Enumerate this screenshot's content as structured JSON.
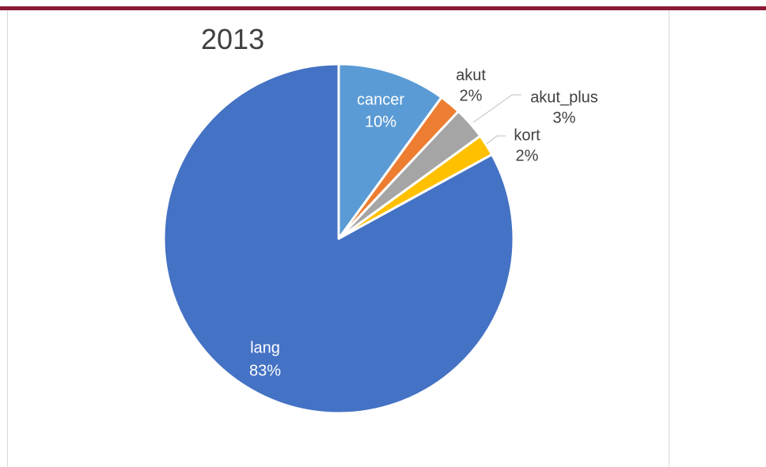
{
  "chart_data": {
    "type": "pie",
    "title": "2013",
    "slices": [
      {
        "name": "cancer",
        "value": 10,
        "label": "10%",
        "color": "#5b9bd5"
      },
      {
        "name": "akut",
        "value": 2,
        "label": "2%",
        "color": "#ed7d31"
      },
      {
        "name": "akut_plus",
        "value": 3,
        "label": "3%",
        "color": "#a5a5a5"
      },
      {
        "name": "kort",
        "value": 2,
        "label": "2%",
        "color": "#ffc000"
      },
      {
        "name": "lang",
        "value": 83,
        "label": "83%",
        "color": "#4472c4"
      }
    ],
    "start_angle_deg": 0,
    "direction": "clockwise",
    "legend": "none"
  },
  "colors": {
    "top_bar": "#8b1a35",
    "inside_label_text": "#ffffff",
    "outside_label_text": "#404040"
  }
}
